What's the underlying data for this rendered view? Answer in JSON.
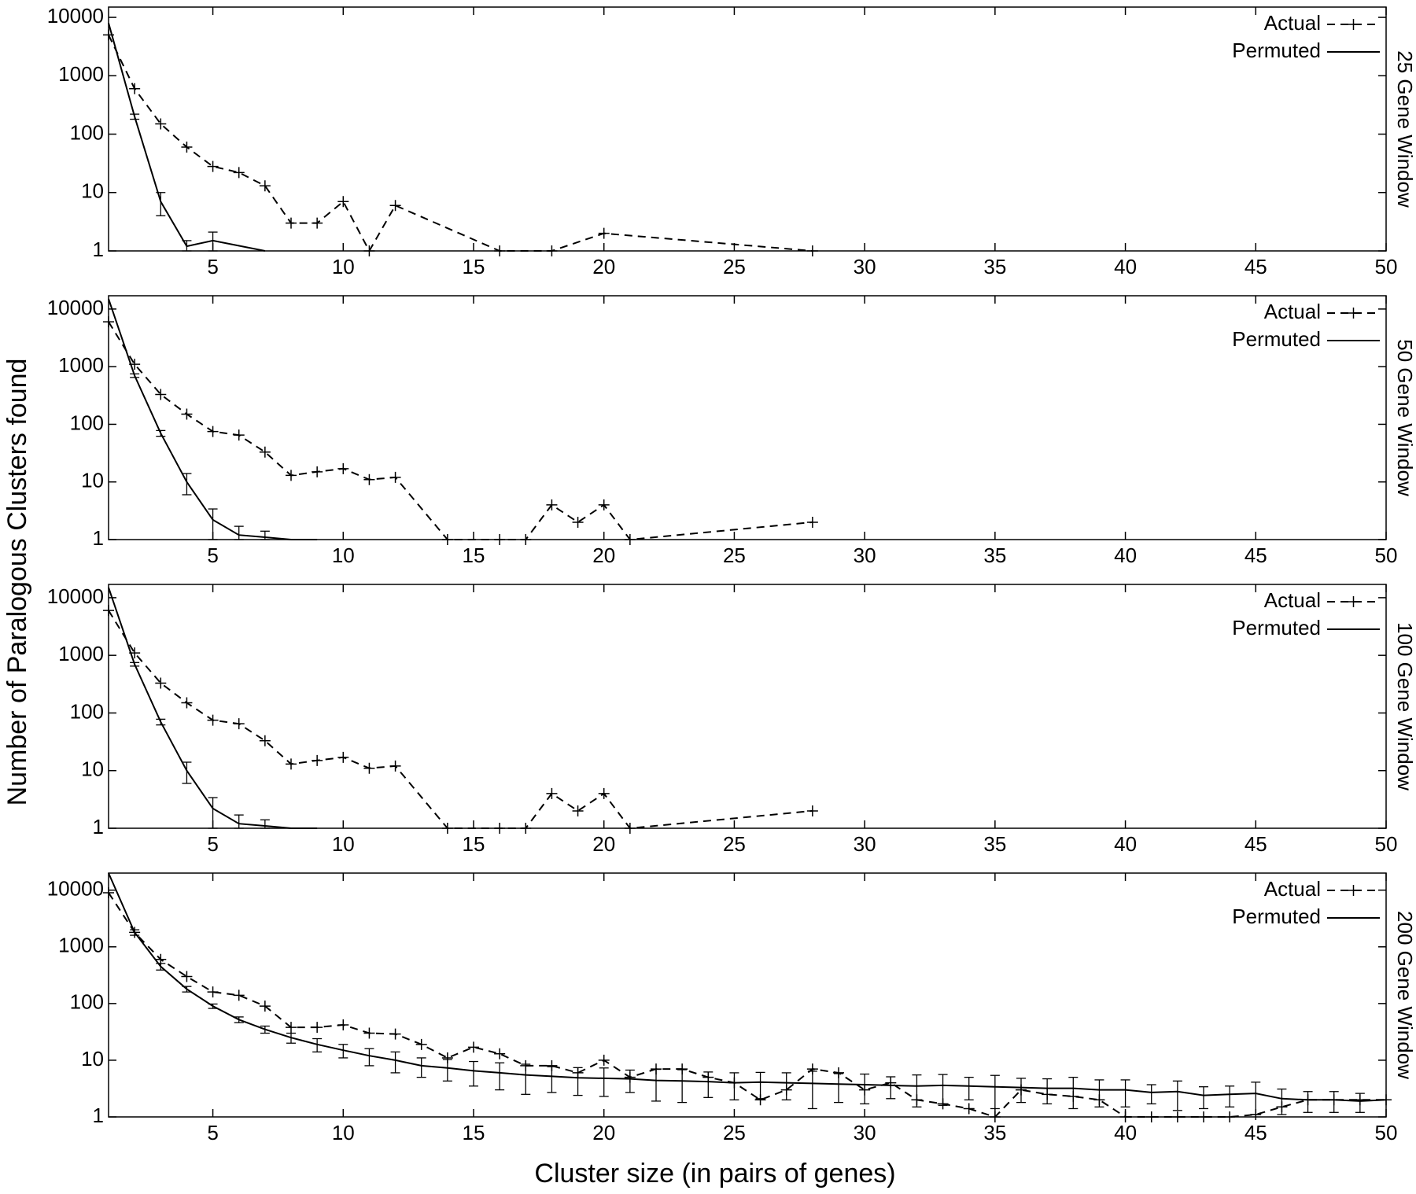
{
  "shared_labels": {
    "ylabel": "Number of Paralogous Clusters found",
    "xlabel": "Cluster size (in pairs of genes)"
  },
  "chart_data": [
    {
      "type": "line",
      "right_label": "25 Gene Window",
      "yscale": "log",
      "legend": "upper right",
      "grid": false,
      "xlim": [
        1,
        50
      ],
      "xticks": [
        5,
        10,
        15,
        20,
        25,
        30,
        35,
        40,
        45,
        50
      ],
      "ylim": [
        1,
        15000
      ],
      "yticks": [
        1,
        10,
        100,
        1000,
        10000
      ],
      "series": [
        {
          "name": "Actual",
          "color": "#000000",
          "line_style": "dashed",
          "marker": "+",
          "x": [
            1,
            2,
            3,
            4,
            5,
            6,
            7,
            8,
            9,
            10,
            11,
            12,
            16,
            18,
            20,
            28
          ],
          "values": [
            5000,
            600,
            150,
            60,
            28,
            22,
            13,
            3,
            3,
            7,
            1,
            6,
            1,
            1,
            2,
            1
          ]
        },
        {
          "name": "Permuted",
          "color": "#000000",
          "line_style": "solid",
          "marker": "none",
          "x": [
            1,
            2,
            3,
            4,
            5,
            7
          ],
          "values": [
            8000,
            200,
            7,
            1.2,
            1.5,
            1
          ],
          "errors": [
            null,
            20,
            3,
            0.3,
            0.6,
            null
          ]
        }
      ]
    },
    {
      "type": "line",
      "right_label": "50 Gene Window",
      "yscale": "log",
      "legend": "upper right",
      "grid": false,
      "xlim": [
        1,
        50
      ],
      "xticks": [
        5,
        10,
        15,
        20,
        25,
        30,
        35,
        40,
        45,
        50
      ],
      "ylim": [
        1,
        17000
      ],
      "yticks": [
        1,
        10,
        100,
        1000,
        10000
      ],
      "series": [
        {
          "name": "Actual",
          "color": "#000000",
          "line_style": "dashed",
          "marker": "+",
          "x": [
            1,
            2,
            3,
            4,
            5,
            6,
            7,
            8,
            9,
            10,
            11,
            12,
            14,
            16,
            17,
            18,
            19,
            20,
            21,
            28
          ],
          "values": [
            6000,
            1100,
            330,
            150,
            75,
            65,
            33,
            13,
            15,
            17,
            11,
            12,
            1,
            1,
            1,
            4,
            2,
            4,
            1,
            2
          ]
        },
        {
          "name": "Permuted",
          "color": "#000000",
          "line_style": "solid",
          "marker": "none",
          "x": [
            1,
            2,
            3,
            4,
            5,
            6,
            7,
            8,
            9
          ],
          "values": [
            15000,
            700,
            70,
            10,
            2.2,
            1.2,
            1.1,
            1,
            1
          ],
          "errors": [
            null,
            50,
            8,
            4,
            1.2,
            0.5,
            0.3,
            null,
            null
          ]
        }
      ]
    },
    {
      "type": "line",
      "right_label": "100 Gene Window",
      "yscale": "log",
      "legend": "upper right",
      "grid": false,
      "xlim": [
        1,
        50
      ],
      "xticks": [
        5,
        10,
        15,
        20,
        25,
        30,
        35,
        40,
        45,
        50
      ],
      "ylim": [
        1,
        17000
      ],
      "yticks": [
        1,
        10,
        100,
        1000,
        10000
      ],
      "series": [
        {
          "name": "Actual",
          "color": "#000000",
          "line_style": "dashed",
          "marker": "+",
          "x": [
            1,
            2,
            3,
            4,
            5,
            6,
            7,
            8,
            9,
            10,
            11,
            12,
            14,
            16,
            17,
            18,
            19,
            20,
            21,
            28
          ],
          "values": [
            6000,
            1100,
            330,
            150,
            75,
            65,
            33,
            13,
            15,
            17,
            11,
            12,
            1,
            1,
            1,
            4,
            2,
            4,
            1,
            2
          ]
        },
        {
          "name": "Permuted",
          "color": "#000000",
          "line_style": "solid",
          "marker": "none",
          "x": [
            1,
            2,
            3,
            4,
            5,
            6,
            7,
            8,
            9
          ],
          "values": [
            15000,
            700,
            70,
            10,
            2.2,
            1.2,
            1.1,
            1,
            1
          ],
          "errors": [
            null,
            50,
            8,
            4,
            1.2,
            0.5,
            0.3,
            null,
            null
          ]
        }
      ]
    },
    {
      "type": "line",
      "right_label": "200 Gene Window",
      "yscale": "log",
      "legend": "upper right",
      "grid": false,
      "xlim": [
        1,
        50
      ],
      "xticks": [
        5,
        10,
        15,
        20,
        25,
        30,
        35,
        40,
        45,
        50
      ],
      "ylim": [
        1,
        20000
      ],
      "yticks": [
        1,
        10,
        100,
        1000,
        10000
      ],
      "series": [
        {
          "name": "Actual",
          "color": "#000000",
          "line_style": "dashed",
          "marker": "+",
          "x": [
            1,
            2,
            3,
            4,
            5,
            6,
            7,
            8,
            9,
            10,
            11,
            12,
            13,
            14,
            15,
            16,
            17,
            18,
            19,
            20,
            21,
            22,
            23,
            24,
            25,
            26,
            27,
            28,
            29,
            30,
            31,
            32,
            33,
            34,
            35,
            36,
            37,
            38,
            39,
            40,
            41,
            42,
            43,
            44,
            45,
            46,
            47,
            48,
            49,
            50
          ],
          "values": [
            9000,
            1800,
            600,
            300,
            160,
            140,
            90,
            38,
            38,
            42,
            30,
            29,
            19,
            11,
            17,
            13,
            8,
            8,
            6,
            10,
            5,
            7,
            7,
            5,
            4,
            2,
            3,
            7,
            6,
            3,
            4,
            2,
            1.7,
            1.4,
            1,
            3,
            2.5,
            2.3,
            2,
            1,
            1,
            1,
            1,
            1,
            1.1,
            1.5,
            2,
            2,
            2,
            2
          ]
        },
        {
          "name": "Permuted",
          "color": "#000000",
          "line_style": "solid",
          "marker": "none",
          "x": [
            1,
            2,
            3,
            4,
            5,
            6,
            7,
            8,
            9,
            10,
            11,
            12,
            13,
            14,
            15,
            16,
            17,
            18,
            19,
            20,
            21,
            22,
            23,
            24,
            25,
            26,
            27,
            28,
            29,
            30,
            31,
            32,
            33,
            34,
            35,
            36,
            37,
            38,
            39,
            40,
            41,
            42,
            43,
            44,
            45,
            46,
            47,
            48,
            49,
            50
          ],
          "values": [
            20000,
            1800,
            450,
            180,
            90,
            52,
            35,
            25,
            19,
            15,
            12,
            10,
            8,
            7.3,
            6.5,
            6,
            5.5,
            5.2,
            4.9,
            4.8,
            4.7,
            4.4,
            4.3,
            4.2,
            4,
            4.1,
            4,
            3.9,
            3.8,
            3.7,
            3.6,
            3.5,
            3.6,
            3.5,
            3.4,
            3.3,
            3.2,
            3.2,
            3,
            3,
            2.7,
            2.8,
            2.4,
            2.5,
            2.6,
            2.1,
            2,
            2,
            1.9,
            2
          ],
          "errors": [
            null,
            200,
            60,
            20,
            8,
            6,
            5,
            5,
            5,
            4,
            4,
            4,
            3,
            3,
            3,
            3,
            3,
            2.5,
            2.5,
            2.5,
            2,
            2.5,
            2.5,
            2,
            2,
            2,
            2,
            2.5,
            2,
            2,
            1.5,
            2,
            2,
            1.5,
            2,
            1.5,
            1.5,
            1.8,
            1.5,
            1.5,
            1,
            1.5,
            1,
            1,
            1.5,
            1,
            0.8,
            0.8,
            0.7,
            null
          ]
        }
      ]
    }
  ]
}
